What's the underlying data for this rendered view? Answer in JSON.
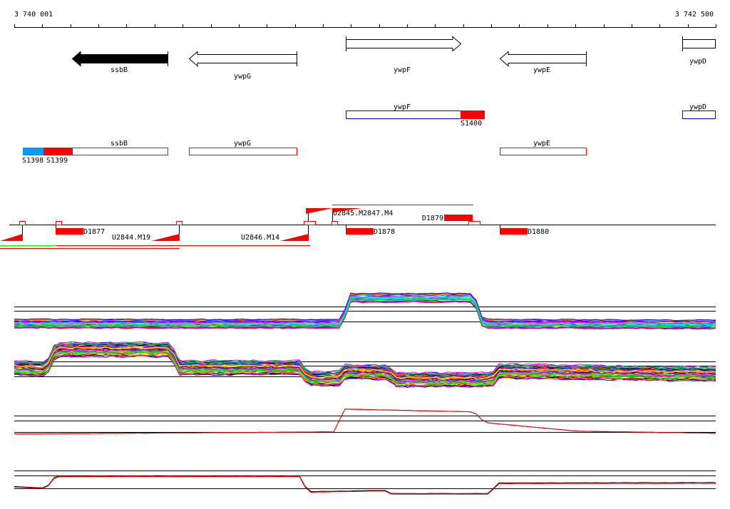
{
  "ruler": {
    "start_label": "3 740 001",
    "end_label": "3 742 500"
  },
  "genes": {
    "ssbB": "ssbB",
    "ywpG": "ywpG",
    "ywpF": "ywpF",
    "ywpE": "ywpE",
    "ywpD": "ywpD"
  },
  "track2": {
    "ywpF": "ywpF",
    "ywpD": "ywpD",
    "S1400": "S1400"
  },
  "track3": {
    "ssbB": "ssbB",
    "ywpG": "ywpG",
    "ywpE": "ywpE",
    "S1398": "S1398",
    "S1399": "S1399"
  },
  "track4": {
    "D1877": "D1877",
    "D1878": "D1878",
    "D1879": "D1879",
    "D1880": "D1880",
    "U2844": "U2844.M19",
    "U2846": "U2846.M14",
    "U2845": "U2845.M2847.M4"
  },
  "colors": {
    "red": "#ff0000",
    "blue": "#0000ff",
    "lightblue": "#0099ff",
    "green": "#00ff00"
  },
  "chart_data": [
    {
      "type": "line",
      "name": "panel-1",
      "xlim": [
        3740001,
        3742500
      ],
      "ylim": [
        0,
        1
      ],
      "lines": 40,
      "spread": 0.22,
      "ref_lines": [
        0.64,
        0.53,
        0.25
      ],
      "profile": [
        [
          3740001,
          0.2
        ],
        [
          3741169,
          0.2
        ],
        [
          3741195,
          0.86
        ],
        [
          3741639,
          0.86
        ],
        [
          3741670,
          0.2
        ],
        [
          3742500,
          0.18
        ]
      ]
    },
    {
      "type": "line",
      "name": "panel-2",
      "xlim": [
        3740001,
        3742500
      ],
      "ylim": [
        0,
        1
      ],
      "lines": 45,
      "spread": 0.3,
      "ref_lines": [
        0.54,
        0.46,
        0.24
      ],
      "profile": [
        [
          3740001,
          0.43
        ],
        [
          3740115,
          0.4
        ],
        [
          3740148,
          0.79
        ],
        [
          3740560,
          0.79
        ],
        [
          3740585,
          0.43
        ],
        [
          3741017,
          0.43
        ],
        [
          3741047,
          0.21
        ],
        [
          3741157,
          0.21
        ],
        [
          3741182,
          0.36
        ],
        [
          3741334,
          0.33
        ],
        [
          3741360,
          0.19
        ],
        [
          3741703,
          0.19
        ],
        [
          3741728,
          0.36
        ],
        [
          3742500,
          0.3
        ]
      ]
    },
    {
      "type": "line",
      "name": "panel-3",
      "xlim": [
        3740001,
        3742500
      ],
      "ylim": [
        0,
        1
      ],
      "lines": 2,
      "spread": 0.04,
      "ref_lines": [
        0.64,
        0.5,
        0.18
      ],
      "profile": [
        [
          3740001,
          0.14
        ],
        [
          3741144,
          0.2
        ],
        [
          3741174,
          0.84
        ],
        [
          3741639,
          0.76
        ],
        [
          3741677,
          0.46
        ],
        [
          3742007,
          0.22
        ],
        [
          3742500,
          0.16
        ]
      ]
    },
    {
      "type": "line",
      "name": "panel-4",
      "xlim": [
        3740001,
        3742500
      ],
      "ylim": [
        0,
        1
      ],
      "lines": 2,
      "spread": 0.05,
      "ref_lines": [
        0.89,
        0.73,
        0.33
      ],
      "profile": [
        [
          3740001,
          0.38
        ],
        [
          3740115,
          0.33
        ],
        [
          3740148,
          0.71
        ],
        [
          3741017,
          0.71
        ],
        [
          3741047,
          0.22
        ],
        [
          3741334,
          0.26
        ],
        [
          3741342,
          0.16
        ],
        [
          3741690,
          0.16
        ],
        [
          3741728,
          0.49
        ],
        [
          3742500,
          0.5
        ]
      ]
    }
  ]
}
